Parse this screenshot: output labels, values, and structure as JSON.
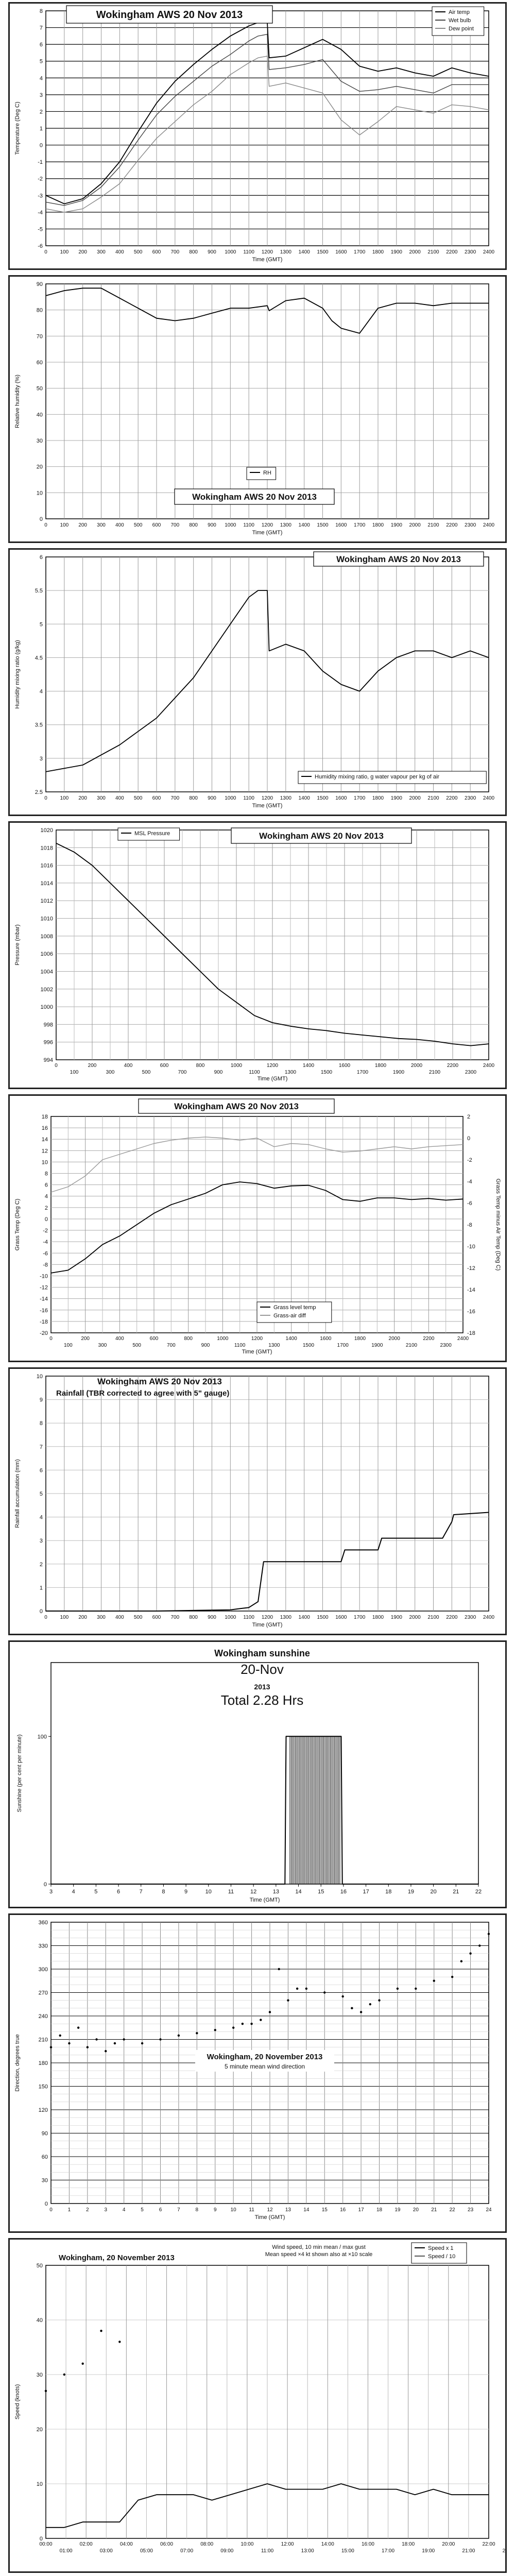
{
  "charts": {
    "temp": {
      "title": "Wokingham AWS 20 Nov 2013",
      "ylabel": "Temperature (Deg C)",
      "xlabel": "Time (GMT)",
      "yticks": [
        "-6",
        "-5",
        "-4",
        "-3",
        "-2",
        "-1",
        "0",
        "1",
        "2",
        "3",
        "4",
        "5",
        "6",
        "7",
        "8"
      ],
      "xticks": [
        "0",
        "100",
        "200",
        "300",
        "400",
        "500",
        "600",
        "700",
        "800",
        "900",
        "1000",
        "1100",
        "1200",
        "1300",
        "1400",
        "1500",
        "1600",
        "1700",
        "1800",
        "1900",
        "2000",
        "2100",
        "2200",
        "2300",
        "2400"
      ],
      "legend": [
        "Air temp",
        "Wet bulb",
        "Dew point"
      ]
    },
    "rh": {
      "title": "Wokingham AWS 20 Nov 2013",
      "ylabel": "Relative humidity (%)",
      "xlabel": "Time (GMT)",
      "yticks": [
        "0",
        "10",
        "20",
        "30",
        "40",
        "50",
        "60",
        "70",
        "80",
        "90"
      ],
      "xticks": [
        "0",
        "100",
        "200",
        "300",
        "400",
        "500",
        "600",
        "700",
        "800",
        "900",
        "1000",
        "1100",
        "1200",
        "1300",
        "1400",
        "1500",
        "1600",
        "1700",
        "1800",
        "1900",
        "2000",
        "2100",
        "2200",
        "2300",
        "2400"
      ],
      "legend": [
        "RH"
      ]
    },
    "hmr": {
      "title": "Wokingham AWS 20 Nov 2013",
      "ylabel": "Humidity mixing ratio (g/kg)",
      "xlabel": "Time (GMT)",
      "yticks": [
        "2.5",
        "3",
        "3.5",
        "4",
        "4.5",
        "5",
        "5.5",
        "6"
      ],
      "xticks": [
        "0",
        "100",
        "200",
        "300",
        "400",
        "500",
        "600",
        "700",
        "800",
        "900",
        "1000",
        "1100",
        "1200",
        "1300",
        "1400",
        "1500",
        "1600",
        "1700",
        "1800",
        "1900",
        "2000",
        "2100",
        "2200",
        "2300",
        "2400"
      ],
      "legend": [
        "Humidity mixing ratio, g water vapour per kg of air"
      ]
    },
    "pres": {
      "title": "Wokingham AWS 20 Nov 2013",
      "ylabel": "Pressure (mbar)",
      "xlabel": "Time (GMT)",
      "yticks": [
        "994",
        "996",
        "998",
        "1000",
        "1002",
        "1004",
        "1006",
        "1008",
        "1010",
        "1012",
        "1014",
        "1016",
        "1018",
        "1020"
      ],
      "xticks_top": [
        "0",
        "200",
        "400",
        "600",
        "800",
        "1000",
        "1200",
        "1400",
        "1600",
        "1800",
        "2000",
        "2200",
        "2400"
      ],
      "xticks_bottom": [
        "100",
        "300",
        "500",
        "700",
        "900",
        "1100",
        "1300",
        "1500",
        "1700",
        "1900",
        "2100",
        "2300"
      ],
      "legend": [
        "MSL Pressure"
      ]
    },
    "grass": {
      "title": "Wokingham AWS 20 Nov 2013",
      "ylabel": "Grass Temp (Deg C)",
      "y2label": "Grass Temp minus Air Temp (Deg C)",
      "xlabel": "Time (GMT)",
      "yticks": [
        "-20",
        "-18",
        "-16",
        "-14",
        "-12",
        "-10",
        "-8",
        "-6",
        "-4",
        "-2",
        "0",
        "2",
        "4",
        "6",
        "8",
        "10",
        "12",
        "14",
        "16",
        "18"
      ],
      "y2ticks": [
        "-18",
        "-16",
        "-14",
        "-12",
        "-10",
        "-8",
        "-6",
        "-4",
        "-2",
        "0",
        "2"
      ],
      "xticks_top": [
        "0",
        "200",
        "400",
        "600",
        "800",
        "1000",
        "1200",
        "1400",
        "1600",
        "1800",
        "2000",
        "2200",
        "2400"
      ],
      "xticks_bottom": [
        "100",
        "300",
        "500",
        "700",
        "900",
        "1100",
        "1300",
        "1500",
        "1700",
        "1900",
        "2100",
        "2300"
      ],
      "legend": [
        "Grass level temp",
        "Grass-air diff"
      ]
    },
    "rain": {
      "title": "Wokingham AWS 20 Nov 2013",
      "subtitle": "Rainfall (TBR corrected to agree with 5\" gauge)",
      "ylabel": "Rainfall accumulation (mm)",
      "xlabel": "Time (GMT)",
      "yticks": [
        "0",
        "1",
        "2",
        "3",
        "4",
        "5",
        "6",
        "7",
        "8",
        "9",
        "10"
      ],
      "xticks": [
        "0",
        "100",
        "200",
        "300",
        "400",
        "500",
        "600",
        "700",
        "800",
        "900",
        "1000",
        "1100",
        "1200",
        "1300",
        "1400",
        "1500",
        "1600",
        "1700",
        "1800",
        "1900",
        "2000",
        "2100",
        "2200",
        "2300",
        "2400"
      ]
    },
    "sun": {
      "title": "Wokingham sunshine",
      "date": "20-Nov",
      "year": "2013",
      "total": "Total 2.28 Hrs",
      "ylabel": "Sunshine (per cent per minute)",
      "xlabel": "Time (GMT)",
      "yticks": [
        "0",
        "100"
      ],
      "xticks": [
        "3",
        "4",
        "5",
        "6",
        "7",
        "8",
        "9",
        "10",
        "11",
        "12",
        "13",
        "14",
        "15",
        "16",
        "17",
        "18",
        "19",
        "20",
        "21",
        "22"
      ]
    },
    "wdir": {
      "title": "Wokingham,  20 November 2013",
      "subtitle": "5 minute mean wind direction",
      "ylabel": "Direction, degrees true",
      "xlabel": "Time (GMT)",
      "yticks": [
        "0",
        "30",
        "60",
        "90",
        "120",
        "150",
        "180",
        "210",
        "240",
        "270",
        "300",
        "330",
        "360"
      ],
      "xticks": [
        "0",
        "1",
        "2",
        "3",
        "4",
        "5",
        "6",
        "7",
        "8",
        "9",
        "10",
        "11",
        "12",
        "13",
        "14",
        "15",
        "16",
        "17",
        "18",
        "19",
        "20",
        "21",
        "22",
        "23",
        "24"
      ]
    },
    "wspd": {
      "title": "Wokingham,  20 November 2013",
      "note1": "Wind speed, 10 min mean / max gust",
      "note2": "Mean speed ×4 kt shown also at ×10 scale",
      "ylabel": "Speed (knots)",
      "yticks": [
        "0",
        "10",
        "20",
        "30",
        "40",
        "50"
      ],
      "xticks_top": [
        "00:00",
        "02:00",
        "04:00",
        "06:00",
        "08:00",
        "10:00",
        "12:00",
        "14:00",
        "16:00",
        "18:00",
        "20:00",
        "22:00"
      ],
      "xticks_bottom": [
        "01:00",
        "03:00",
        "05:00",
        "07:00",
        "09:00",
        "11:00",
        "13:00",
        "15:00",
        "17:00",
        "19:00",
        "21:00",
        "23:00"
      ],
      "legend": [
        "Speed x 1",
        "Speed / 10"
      ]
    }
  },
  "chart_data": [
    {
      "type": "line",
      "title": "Wokingham AWS 20 Nov 2013",
      "xlabel": "Time (GMT)",
      "ylabel": "Temperature (Deg C)",
      "xlim": [
        0,
        2400
      ],
      "ylim": [
        -6,
        8
      ],
      "x": [
        0,
        100,
        200,
        300,
        400,
        500,
        600,
        700,
        800,
        900,
        1000,
        1100,
        1150,
        1200,
        1210,
        1300,
        1400,
        1500,
        1600,
        1700,
        1800,
        1900,
        2000,
        2100,
        2200,
        2300,
        2400
      ],
      "series": [
        {
          "name": "Air temp",
          "values": [
            -3,
            -3.5,
            -3.2,
            -2.3,
            -1,
            0.8,
            2.5,
            3.8,
            4.8,
            5.7,
            6.5,
            7.1,
            7.3,
            7.3,
            5.2,
            5.3,
            5.8,
            6.3,
            5.7,
            4.7,
            4.4,
            4.6,
            4.3,
            4.1,
            4.6,
            4.3,
            4.1
          ]
        },
        {
          "name": "Wet bulb",
          "values": [
            -3.4,
            -3.6,
            -3.3,
            -2.5,
            -1.3,
            0.3,
            1.8,
            2.9,
            3.8,
            4.7,
            5.4,
            6.2,
            6.5,
            6.6,
            4.5,
            4.6,
            4.8,
            5.1,
            3.8,
            3.2,
            3.3,
            3.5,
            3.3,
            3.1,
            3.6,
            3.6,
            3.6
          ]
        },
        {
          "name": "Dew point",
          "values": [
            -3.8,
            -4.0,
            -3.8,
            -3.1,
            -2.3,
            -0.9,
            0.4,
            1.4,
            2.4,
            3.2,
            4.2,
            4.9,
            5.2,
            5.3,
            3.5,
            3.7,
            3.4,
            3.1,
            1.5,
            0.6,
            1.4,
            2.3,
            2.1,
            1.9,
            2.4,
            2.3,
            2.1
          ]
        }
      ]
    },
    {
      "type": "line",
      "title": "Wokingham AWS 20 Nov 2013",
      "xlabel": "Time (GMT)",
      "ylabel": "Relative humidity (%)",
      "xlim": [
        0,
        2400
      ],
      "ylim": [
        0,
        100
      ],
      "x": [
        0,
        100,
        200,
        300,
        400,
        500,
        600,
        700,
        800,
        900,
        1000,
        1100,
        1200,
        1210,
        1300,
        1400,
        1500,
        1550,
        1600,
        1700,
        1800,
        1900,
        2000,
        2100,
        2200,
        2300,
        2400
      ],
      "series": [
        {
          "name": "RH",
          "values": [
            89,
            91,
            92,
            92,
            88,
            84,
            80,
            79,
            80,
            82,
            84,
            84,
            85,
            83,
            87,
            88,
            84,
            79,
            76,
            74,
            84,
            86,
            86,
            85,
            86,
            86,
            86
          ]
        }
      ]
    },
    {
      "type": "line",
      "title": "Wokingham AWS 20 Nov 2013",
      "xlabel": "Time (GMT)",
      "ylabel": "Humidity mixing ratio (g/kg)",
      "xlim": [
        0,
        2400
      ],
      "ylim": [
        2.5,
        6
      ],
      "x": [
        0,
        100,
        200,
        300,
        400,
        500,
        600,
        700,
        800,
        900,
        1000,
        1100,
        1150,
        1200,
        1210,
        1300,
        1400,
        1500,
        1600,
        1700,
        1800,
        1900,
        2000,
        2100,
        2200,
        2300,
        2400
      ],
      "series": [
        {
          "name": "Humidity mixing ratio, g water vapour per kg of air",
          "values": [
            2.8,
            2.85,
            2.9,
            3.05,
            3.2,
            3.4,
            3.6,
            3.9,
            4.2,
            4.6,
            5.0,
            5.4,
            5.5,
            5.5,
            4.6,
            4.7,
            4.6,
            4.3,
            4.1,
            4.0,
            4.3,
            4.5,
            4.6,
            4.6,
            4.5,
            4.6,
            4.5
          ]
        }
      ]
    },
    {
      "type": "line",
      "title": "Wokingham AWS 20 Nov 2013",
      "xlabel": "Time (GMT)",
      "ylabel": "Pressure (mbar)",
      "xlim": [
        0,
        2400
      ],
      "ylim": [
        994,
        1020
      ],
      "x": [
        0,
        100,
        200,
        300,
        400,
        500,
        600,
        700,
        800,
        900,
        1000,
        1100,
        1200,
        1300,
        1400,
        1500,
        1600,
        1700,
        1800,
        1900,
        2000,
        2100,
        2200,
        2300,
        2400
      ],
      "series": [
        {
          "name": "MSL Pressure",
          "values": [
            1018.5,
            1017.5,
            1016,
            1014,
            1012,
            1010,
            1008,
            1006,
            1004,
            1002,
            1000.5,
            999,
            998.2,
            997.8,
            997.5,
            997.3,
            997.0,
            996.8,
            996.6,
            996.4,
            996.3,
            996.1,
            995.8,
            995.6,
            995.8
          ]
        }
      ]
    },
    {
      "type": "line",
      "title": "Wokingham AWS 20 Nov 2013",
      "xlabel": "Time (GMT)",
      "ylabel": "Grass Temp (Deg C)",
      "xlim": [
        0,
        2400
      ],
      "ylim": [
        -20,
        18
      ],
      "x": [
        0,
        100,
        200,
        300,
        400,
        500,
        600,
        700,
        800,
        900,
        1000,
        1100,
        1200,
        1300,
        1400,
        1500,
        1600,
        1700,
        1800,
        1900,
        2000,
        2100,
        2200,
        2300,
        2400
      ],
      "series": [
        {
          "name": "Grass level temp",
          "values": [
            -9.5,
            -9,
            -7,
            -4.5,
            -3,
            -1,
            1,
            2.5,
            3.5,
            4.5,
            6,
            6.5,
            6.2,
            5.4,
            5.8,
            5.9,
            5.0,
            3.4,
            3.1,
            3.7,
            3.7,
            3.4,
            3.6,
            3.3,
            3.5
          ]
        },
        {
          "name": "Grass-air diff",
          "values": [
            -5,
            -4.5,
            -3.5,
            -2,
            -1.5,
            -1,
            -0.5,
            -0.2,
            0,
            0.1,
            0,
            -0.2,
            0,
            -0.8,
            -0.5,
            -0.6,
            -1,
            -1.3,
            -1.2,
            -1,
            -0.8,
            -1,
            -0.8,
            -0.7,
            -0.6
          ]
        }
      ]
    },
    {
      "type": "line",
      "title": "Wokingham AWS 20 Nov 2013",
      "xlabel": "Time (GMT)",
      "ylabel": "Rainfall accumulation (mm)",
      "xlim": [
        0,
        2400
      ],
      "ylim": [
        0,
        10
      ],
      "x": [
        0,
        600,
        1000,
        1050,
        1100,
        1150,
        1180,
        1600,
        1620,
        1800,
        1820,
        2150,
        2200,
        2210,
        2400
      ],
      "series": [
        {
          "name": "Rainfall",
          "values": [
            0,
            0,
            0.05,
            0.1,
            0.15,
            0.4,
            2.1,
            2.1,
            2.6,
            2.6,
            3.1,
            3.1,
            3.8,
            4.1,
            4.2
          ]
        }
      ]
    },
    {
      "type": "line",
      "title": "Wokingham sunshine",
      "xlabel": "Time (GMT)",
      "ylabel": "Sunshine (per cent per minute)",
      "xlim": [
        3,
        22
      ],
      "ylim": [
        0,
        150
      ],
      "x": [
        3,
        13.4,
        13.45,
        13.6,
        13.62,
        15.9,
        15.95,
        22
      ],
      "series": [
        {
          "name": "Sunshine",
          "values": [
            0,
            0,
            100,
            100,
            100,
            100,
            0,
            0
          ]
        }
      ]
    },
    {
      "type": "scatter",
      "title": "Wokingham,  20 November 2013",
      "xlabel": "Time (GMT)",
      "ylabel": "Direction, degrees true",
      "xlim": [
        0,
        24
      ],
      "ylim": [
        0,
        360
      ],
      "x": [
        0,
        0.5,
        1,
        1.5,
        2,
        2.5,
        3,
        3.5,
        4,
        5,
        6,
        7,
        8,
        9,
        10,
        10.5,
        11,
        11.5,
        12,
        12.5,
        13,
        13.5,
        14,
        15,
        16,
        16.5,
        17,
        17.5,
        18,
        19,
        20,
        21,
        22,
        22.5,
        23,
        23.5,
        24
      ],
      "series": [
        {
          "name": "Wind direction",
          "values": [
            200,
            215,
            205,
            225,
            200,
            210,
            195,
            205,
            210,
            205,
            210,
            215,
            218,
            222,
            225,
            230,
            230,
            235,
            245,
            300,
            260,
            275,
            275,
            270,
            265,
            250,
            245,
            255,
            260,
            275,
            275,
            285,
            290,
            310,
            320,
            330,
            345
          ]
        }
      ]
    },
    {
      "type": "line",
      "title": "Wokingham,  20 November 2013",
      "ylabel": "Speed (knots)",
      "xlim": [
        0,
        24
      ],
      "ylim": [
        0,
        50
      ],
      "x": [
        0,
        1,
        2,
        3,
        4,
        5,
        6,
        7,
        8,
        9,
        10,
        11,
        12,
        13,
        14,
        15,
        16,
        17,
        18,
        19,
        20,
        21,
        22,
        23,
        24
      ],
      "series": [
        {
          "name": "Speed x 1",
          "values": [
            2,
            2,
            3,
            3,
            3,
            7,
            8,
            8,
            8,
            7,
            8,
            9,
            10,
            9,
            9,
            9,
            10,
            9,
            9,
            9,
            8,
            9,
            8,
            8,
            8
          ]
        },
        {
          "name": "Speed / 10",
          "values": [
            27,
            30,
            32,
            38,
            36,
            null,
            null,
            null,
            null,
            null,
            null,
            null,
            null,
            null,
            null,
            null,
            null,
            null,
            null,
            null,
            null,
            null,
            null,
            null,
            null
          ]
        }
      ]
    }
  ]
}
